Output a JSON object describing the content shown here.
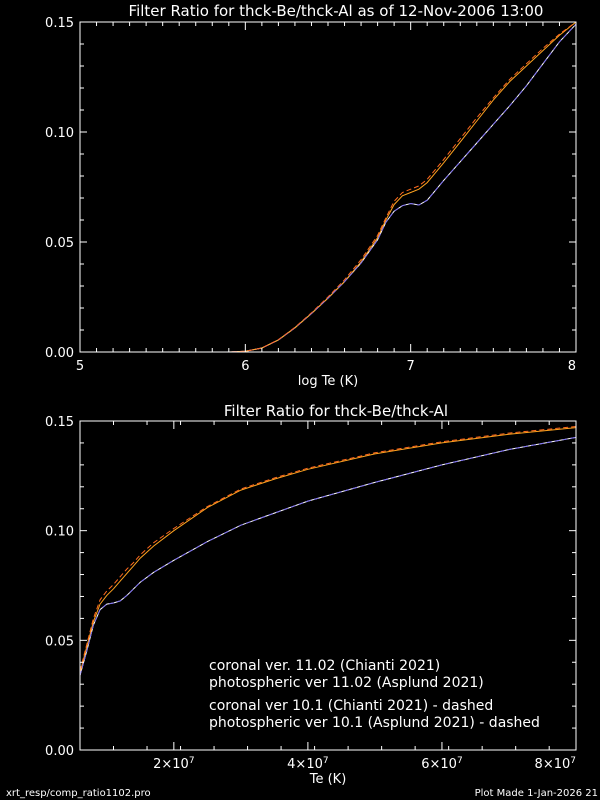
{
  "colors": {
    "background": "#000000",
    "axes": "#ffffff",
    "coronal_11": "#ffffff",
    "photospheric_11": "#ffa31f",
    "coronal_10": "#7a6cf0",
    "photospheric_10": "#ff6a1f"
  },
  "footer": {
    "left": "xrt_resp/comp_ratio1102.pro",
    "right": "Plot Made  1-Jan-2026 21"
  },
  "chart_data": [
    {
      "type": "line",
      "title": "Filter Ratio for thck-Be/thck-Al as of 12-Nov-2006 13:00",
      "xlabel": "log Te (K)",
      "ylabel": "",
      "xlim": [
        5,
        8
      ],
      "ylim": [
        0,
        0.15
      ],
      "x_ticks": [
        5,
        6,
        7,
        8
      ],
      "x_tick_labels": [
        "5",
        "6",
        "7",
        "8"
      ],
      "y_ticks": [
        0,
        0.05,
        0.1,
        0.15
      ],
      "y_tick_labels": [
        "0.00",
        "0.05",
        "0.10",
        "0.15"
      ],
      "grid": false,
      "series": [
        {
          "name": "coronal ver. 11.02 (Chianti 2021)",
          "color": "#ffffff",
          "dashed": false,
          "x": [
            5.0,
            5.5,
            5.9,
            6.0,
            6.1,
            6.2,
            6.3,
            6.4,
            6.5,
            6.6,
            6.7,
            6.8,
            6.85,
            6.9,
            6.95,
            7.0,
            7.05,
            7.1,
            7.15,
            7.2,
            7.3,
            7.4,
            7.5,
            7.6,
            7.7,
            7.8,
            7.9,
            8.0
          ],
          "y": [
            0.0,
            0.0,
            0.0,
            0.0003,
            0.0018,
            0.0055,
            0.011,
            0.0175,
            0.0245,
            0.032,
            0.0405,
            0.051,
            0.059,
            0.064,
            0.0665,
            0.0675,
            0.0668,
            0.069,
            0.0735,
            0.078,
            0.0865,
            0.095,
            0.1035,
            0.112,
            0.121,
            0.131,
            0.141,
            0.149
          ]
        },
        {
          "name": "photospheric ver 11.02 (Asplund 2021)",
          "color": "#ffa31f",
          "dashed": false,
          "x": [
            5.0,
            5.5,
            5.9,
            6.0,
            6.1,
            6.2,
            6.3,
            6.4,
            6.5,
            6.6,
            6.7,
            6.8,
            6.85,
            6.9,
            6.95,
            7.0,
            7.05,
            7.1,
            7.15,
            7.2,
            7.3,
            7.4,
            7.5,
            7.6,
            7.7,
            7.8,
            7.9,
            8.0
          ],
          "y": [
            0.0,
            0.0,
            0.0,
            0.0003,
            0.0018,
            0.0055,
            0.011,
            0.0175,
            0.0245,
            0.032,
            0.041,
            0.052,
            0.06,
            0.067,
            0.071,
            0.0725,
            0.074,
            0.077,
            0.0815,
            0.086,
            0.0955,
            0.105,
            0.1145,
            0.123,
            0.13,
            0.137,
            0.144,
            0.15
          ]
        },
        {
          "name": "coronal ver 10.1 (Chianti 2021) - dashed",
          "color": "#7a6cf0",
          "dashed": true,
          "x": [
            5.0,
            5.5,
            5.9,
            6.0,
            6.1,
            6.2,
            6.3,
            6.4,
            6.5,
            6.6,
            6.7,
            6.8,
            6.85,
            6.9,
            6.95,
            7.0,
            7.05,
            7.1,
            7.15,
            7.2,
            7.3,
            7.4,
            7.5,
            7.6,
            7.7,
            7.8,
            7.9,
            8.0
          ],
          "y": [
            0.0,
            0.0,
            0.0,
            0.0003,
            0.0018,
            0.0055,
            0.011,
            0.0175,
            0.0245,
            0.032,
            0.0405,
            0.051,
            0.059,
            0.064,
            0.0665,
            0.0675,
            0.0668,
            0.069,
            0.0735,
            0.078,
            0.0865,
            0.095,
            0.1035,
            0.112,
            0.121,
            0.131,
            0.141,
            0.149
          ]
        },
        {
          "name": "photospheric ver 10.1 (Asplund 2021) - dashed",
          "color": "#ff6a1f",
          "dashed": true,
          "x": [
            5.0,
            5.5,
            5.9,
            6.0,
            6.1,
            6.2,
            6.3,
            6.4,
            6.5,
            6.6,
            6.7,
            6.8,
            6.85,
            6.9,
            6.95,
            7.0,
            7.05,
            7.1,
            7.15,
            7.2,
            7.3,
            7.4,
            7.5,
            7.6,
            7.7,
            7.8,
            7.9,
            8.0
          ],
          "y": [
            0.0,
            0.0,
            0.0,
            0.0003,
            0.0018,
            0.0056,
            0.0112,
            0.0178,
            0.025,
            0.0328,
            0.042,
            0.053,
            0.061,
            0.0685,
            0.0725,
            0.074,
            0.0755,
            0.0785,
            0.083,
            0.0875,
            0.097,
            0.1065,
            0.1155,
            0.124,
            0.131,
            0.138,
            0.1445,
            0.15
          ]
        }
      ]
    },
    {
      "type": "line",
      "title": "Filter Ratio for thck-Be/thck-Al",
      "xlabel": "Te (K)",
      "ylabel": "",
      "xlim": [
        6000000,
        80000000
      ],
      "ylim": [
        0,
        0.15
      ],
      "x_ticks": [
        20000000,
        40000000,
        60000000,
        80000000
      ],
      "x_tick_labels": [
        "2×10^7",
        "4×10^7",
        "6×10^7",
        "8×10^7"
      ],
      "y_ticks": [
        0,
        0.05,
        0.1,
        0.15
      ],
      "y_tick_labels": [
        "0.00",
        "0.05",
        "0.10",
        "0.15"
      ],
      "grid": false,
      "legend": {
        "placement": "bottom-right",
        "entries": [
          {
            "text": "coronal ver. 11.02 (Chianti 2021)",
            "color": "#ffffff"
          },
          {
            "text": "photospheric ver 11.02 (Asplund 2021)",
            "color": "#ffa31f"
          },
          {
            "text": "coronal ver 10.1 (Chianti 2021) - dashed",
            "color": "#7a6cf0"
          },
          {
            "text": "photospheric ver 10.1 (Asplund 2021) - dashed",
            "color": "#ff6a1f"
          }
        ]
      },
      "series": [
        {
          "name": "coronal ver. 11.02 (Chianti 2021)",
          "color": "#ffffff",
          "dashed": false,
          "x": [
            6000000,
            7000000,
            8000000,
            9000000,
            10000000,
            11000000,
            12000000,
            13000000,
            14000000,
            15000000,
            17000000,
            20000000,
            25000000,
            30000000,
            35000000,
            40000000,
            50000000,
            60000000,
            70000000,
            80000000
          ],
          "y": [
            0.034,
            0.045,
            0.057,
            0.064,
            0.0665,
            0.067,
            0.068,
            0.0705,
            0.0735,
            0.0765,
            0.081,
            0.0865,
            0.095,
            0.1025,
            0.108,
            0.1135,
            0.122,
            0.13,
            0.137,
            0.1425
          ]
        },
        {
          "name": "photospheric ver 11.02 (Asplund 2021)",
          "color": "#ffa31f",
          "dashed": false,
          "x": [
            6000000,
            7000000,
            8000000,
            9000000,
            10000000,
            11000000,
            12000000,
            13000000,
            14000000,
            15000000,
            17000000,
            20000000,
            25000000,
            30000000,
            35000000,
            40000000,
            50000000,
            60000000,
            70000000,
            80000000
          ],
          "y": [
            0.035,
            0.047,
            0.0585,
            0.0665,
            0.0705,
            0.0735,
            0.077,
            0.0805,
            0.084,
            0.0875,
            0.093,
            0.1,
            0.1105,
            0.1185,
            0.1235,
            0.128,
            0.135,
            0.14,
            0.144,
            0.147
          ]
        },
        {
          "name": "coronal ver 10.1 (Chianti 2021) - dashed",
          "color": "#7a6cf0",
          "dashed": true,
          "x": [
            6000000,
            7000000,
            8000000,
            9000000,
            10000000,
            11000000,
            12000000,
            13000000,
            14000000,
            15000000,
            17000000,
            20000000,
            25000000,
            30000000,
            35000000,
            40000000,
            50000000,
            60000000,
            70000000,
            80000000
          ],
          "y": [
            0.034,
            0.045,
            0.057,
            0.064,
            0.0665,
            0.067,
            0.068,
            0.0705,
            0.0735,
            0.0765,
            0.081,
            0.0865,
            0.095,
            0.1025,
            0.108,
            0.1135,
            0.122,
            0.13,
            0.137,
            0.1425
          ]
        },
        {
          "name": "photospheric ver 10.1 (Asplund 2021) - dashed",
          "color": "#ff6a1f",
          "dashed": true,
          "x": [
            6000000,
            7000000,
            8000000,
            9000000,
            10000000,
            11000000,
            12000000,
            13000000,
            14000000,
            15000000,
            17000000,
            20000000,
            25000000,
            30000000,
            35000000,
            40000000,
            50000000,
            60000000,
            70000000,
            80000000
          ],
          "y": [
            0.036,
            0.048,
            0.06,
            0.0685,
            0.0725,
            0.0755,
            0.079,
            0.0825,
            0.0855,
            0.089,
            0.0945,
            0.101,
            0.111,
            0.119,
            0.124,
            0.1285,
            0.1355,
            0.1405,
            0.1445,
            0.1475
          ]
        }
      ]
    }
  ]
}
